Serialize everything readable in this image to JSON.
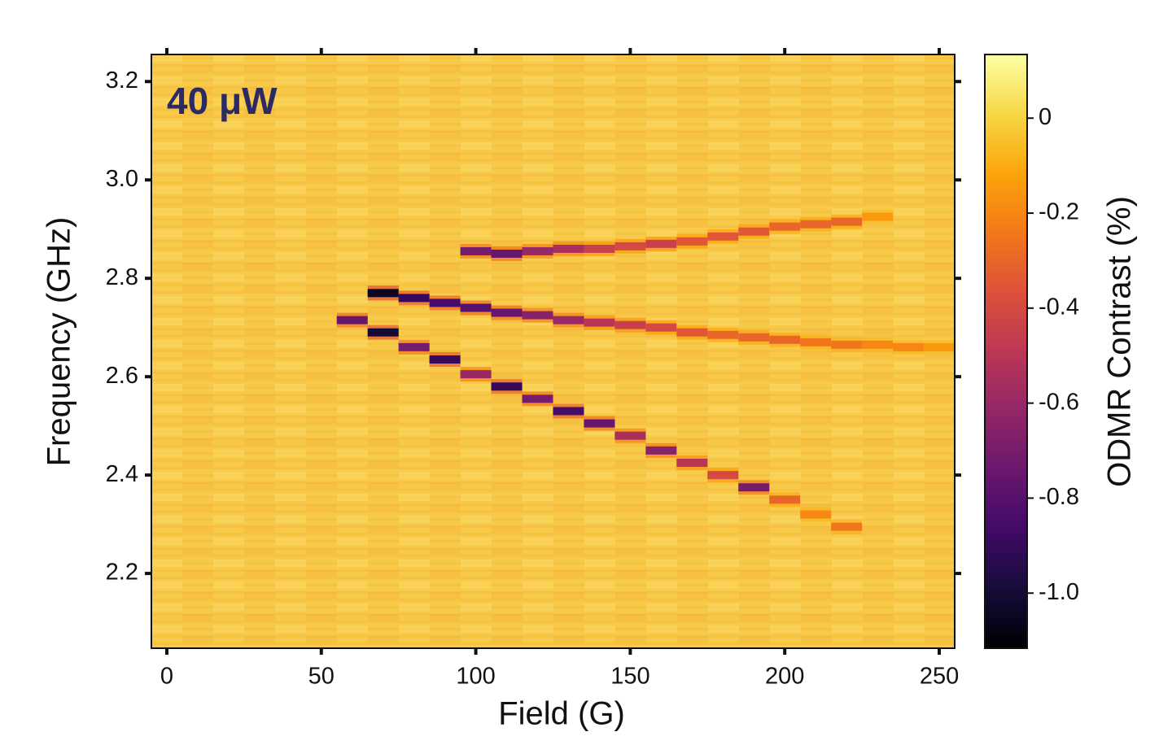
{
  "chart_data": {
    "type": "heatmap",
    "annotation": "40 μW",
    "xlabel": "Field (G)",
    "ylabel": "Frequency (GHz)",
    "colorbar_label": "ODMR Contrast (%)",
    "colormap": "inferno",
    "xlim": [
      -5,
      255
    ],
    "xticks": [
      0,
      50,
      100,
      150,
      200,
      250
    ],
    "ylim": [
      2.048,
      3.255
    ],
    "yticks": [
      2.2,
      2.4,
      2.6,
      2.8,
      {
        "value": 3,
        "label": "3.0"
      },
      3.2
    ],
    "clim": [
      -1.116,
      0.134
    ],
    "cticks": [
      0,
      -0.2,
      -0.4,
      -0.6,
      -0.8,
      {
        "value": -1,
        "label": "-1.0"
      }
    ],
    "series": [
      {
        "x": [
          100,
          110,
          120,
          130,
          140,
          150,
          160,
          170,
          180,
          190,
          200,
          210,
          220,
          230
        ],
        "values": [
          2.855,
          2.85,
          2.855,
          2.86,
          2.86,
          2.865,
          2.87,
          2.875,
          2.885,
          2.895,
          2.905,
          2.91,
          2.915,
          2.925
        ],
        "contrast": [
          -0.7,
          -0.75,
          -0.6,
          -0.55,
          -0.45,
          -0.4,
          -0.45,
          -0.35,
          -0.35,
          -0.35,
          -0.3,
          -0.3,
          -0.3,
          -0.15
        ]
      },
      {
        "x": [
          60,
          70,
          80,
          90,
          100,
          110,
          120,
          130,
          140,
          150,
          160,
          170,
          180,
          190,
          200,
          210,
          220,
          230,
          240,
          250
        ],
        "values": [
          2.715,
          2.77,
          2.76,
          2.75,
          2.74,
          2.73,
          2.725,
          2.715,
          2.71,
          2.705,
          2.7,
          2.69,
          2.685,
          2.68,
          2.675,
          2.67,
          2.665,
          2.665,
          2.66,
          2.66
        ],
        "contrast": [
          -0.75,
          -1.05,
          -0.9,
          -0.85,
          -0.8,
          -0.75,
          -0.65,
          -0.6,
          -0.5,
          -0.45,
          -0.4,
          -0.35,
          -0.3,
          -0.3,
          -0.3,
          -0.25,
          -0.25,
          -0.2,
          -0.2,
          -0.15
        ]
      },
      {
        "x": [
          70,
          80,
          90,
          100,
          110,
          120,
          130,
          140,
          150,
          160,
          170,
          180,
          190,
          200,
          210,
          220
        ],
        "values": [
          2.69,
          2.66,
          2.635,
          2.605,
          2.58,
          2.555,
          2.53,
          2.505,
          2.48,
          2.45,
          2.425,
          2.4,
          2.375,
          2.35,
          2.32,
          2.295
        ],
        "contrast": [
          -1.0,
          -0.7,
          -0.9,
          -0.6,
          -0.9,
          -0.7,
          -0.85,
          -0.75,
          -0.55,
          -0.65,
          -0.5,
          -0.4,
          -0.7,
          -0.3,
          -0.2,
          -0.25
        ]
      }
    ]
  }
}
